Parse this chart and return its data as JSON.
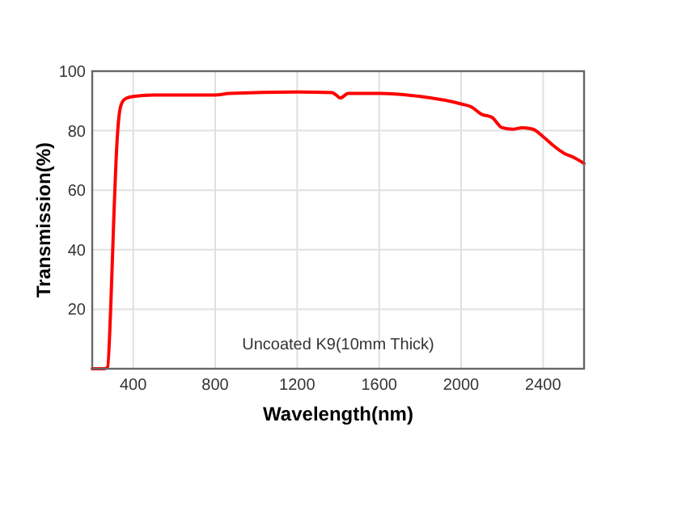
{
  "chart_data": {
    "type": "line",
    "xlabel": "Wavelength(nm)",
    "ylabel": "Transmission(%)",
    "annotations": [
      "Uncoated K9(10mm Thick)"
    ],
    "x": [
      200,
      260,
      275,
      290,
      305,
      320,
      335,
      350,
      370,
      400,
      500,
      800,
      870,
      1200,
      1370,
      1390,
      1410,
      1450,
      1600,
      1800,
      2000,
      2050,
      2100,
      2150,
      2200,
      2250,
      2300,
      2350,
      2400,
      2450,
      2500,
      2550,
      2600
    ],
    "series": [
      {
        "color": "#ff0000",
        "values": [
          0,
          0,
          0.5,
          20,
          50,
          75,
          87,
          90,
          91,
          91.5,
          92,
          92,
          92.5,
          93,
          92.8,
          92,
          91,
          92.5,
          92.5,
          91.5,
          89,
          88,
          85.5,
          84.5,
          81,
          80.5,
          81,
          80.5,
          78,
          75,
          72.5,
          71,
          69
        ]
      }
    ],
    "xlim": [
      200,
      2600
    ],
    "xticks": [
      400,
      800,
      1200,
      1600,
      2000,
      2400
    ],
    "ylim": [
      0,
      100
    ],
    "yticks": [
      20,
      40,
      60,
      80,
      100
    ],
    "grid": true,
    "marker": "none",
    "line_style": "solid"
  }
}
